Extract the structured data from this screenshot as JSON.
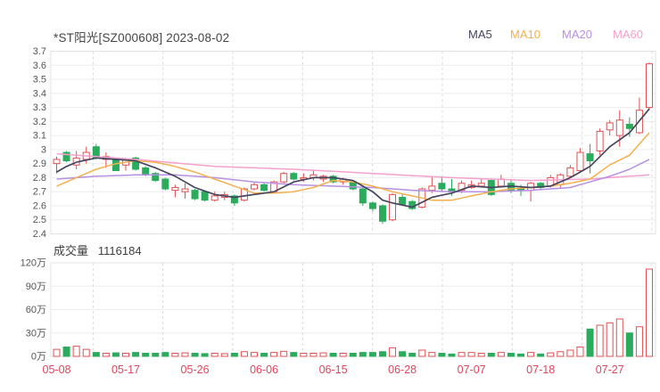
{
  "header": {
    "title": "*ST阳光[SZ000608] 2023-08-02",
    "legend": [
      {
        "label": "MA5",
        "color": "#45455f"
      },
      {
        "label": "MA10",
        "color": "#f3b04e"
      },
      {
        "label": "MA20",
        "color": "#b78fe3"
      },
      {
        "label": "MA60",
        "color": "#f5a0cd"
      }
    ]
  },
  "volume_header": {
    "label": "成交量",
    "value": "1116184"
  },
  "colors": {
    "up": "#e15052",
    "down": "#2bab5c",
    "ma5": "#45455f",
    "ma10": "#f3b04e",
    "ma20": "#b78fe3",
    "ma60": "#f5a0cd",
    "grid": "#ededed",
    "grid_dash": "#d9d9d9",
    "border": "#e3e3e3",
    "axis_text": "#555555",
    "x_axis_text": "#e0455c",
    "title_text": "#454545"
  },
  "chart_data": {
    "type": "candlestick+volume",
    "title": "*ST阳光[SZ000608] 2023-08-02",
    "price_axis": {
      "min": 2.4,
      "max": 3.7,
      "ticks": [
        "3.7",
        "3.6",
        "3.5",
        "3.4",
        "3.3",
        "3.2",
        "3.1",
        "3",
        "2.9",
        "2.8",
        "2.7",
        "2.6",
        "2.5",
        "2.4"
      ]
    },
    "volume_axis": {
      "max_wan": 120,
      "ticks_wan": [
        120,
        90,
        60,
        30,
        0
      ],
      "unit": "万"
    },
    "x_ticks": [
      {
        "i": 0,
        "label": "05-08"
      },
      {
        "i": 7,
        "label": "05-17"
      },
      {
        "i": 14,
        "label": "05-26"
      },
      {
        "i": 21,
        "label": "06-06"
      },
      {
        "i": 28,
        "label": "06-15"
      },
      {
        "i": 35,
        "label": "06-28"
      },
      {
        "i": 42,
        "label": "07-07"
      },
      {
        "i": 49,
        "label": "07-18"
      },
      {
        "i": 56,
        "label": "07-27"
      }
    ],
    "dates": [
      "05-08",
      "05-09",
      "05-10",
      "05-11",
      "05-12",
      "05-15",
      "05-16",
      "05-17",
      "05-18",
      "05-19",
      "05-22",
      "05-23",
      "05-24",
      "05-25",
      "05-26",
      "05-29",
      "05-30",
      "05-31",
      "06-01",
      "06-02",
      "06-05",
      "06-06",
      "06-07",
      "06-08",
      "06-09",
      "06-12",
      "06-13",
      "06-14",
      "06-15",
      "06-16",
      "06-19",
      "06-20",
      "06-21",
      "06-26",
      "06-27",
      "06-28",
      "06-29",
      "06-30",
      "07-03",
      "07-04",
      "07-05",
      "07-06",
      "07-07",
      "07-10",
      "07-11",
      "07-12",
      "07-13",
      "07-14",
      "07-17",
      "07-18",
      "07-19",
      "07-20",
      "07-21",
      "07-24",
      "07-25",
      "07-26",
      "07-27",
      "07-28",
      "07-31",
      "08-01",
      "08-02"
    ],
    "ohlc": [
      [
        2.9,
        2.95,
        2.83,
        2.93
      ],
      [
        2.98,
        2.99,
        2.91,
        2.92
      ],
      [
        2.89,
        2.99,
        2.86,
        2.94
      ],
      [
        2.93,
        3.02,
        2.9,
        2.98
      ],
      [
        3.02,
        3.04,
        2.93,
        2.94
      ],
      [
        2.93,
        2.98,
        2.87,
        2.95
      ],
      [
        2.93,
        2.94,
        2.85,
        2.85
      ],
      [
        2.89,
        2.94,
        2.85,
        2.93
      ],
      [
        2.94,
        2.95,
        2.85,
        2.86
      ],
      [
        2.87,
        2.88,
        2.81,
        2.82
      ],
      [
        2.83,
        2.84,
        2.77,
        2.78
      ],
      [
        2.79,
        2.8,
        2.71,
        2.72
      ],
      [
        2.71,
        2.75,
        2.66,
        2.73
      ],
      [
        2.7,
        2.76,
        2.65,
        2.72
      ],
      [
        2.71,
        2.72,
        2.64,
        2.65
      ],
      [
        2.7,
        2.71,
        2.63,
        2.64
      ],
      [
        2.64,
        2.7,
        2.63,
        2.67
      ],
      [
        2.66,
        2.7,
        2.64,
        2.68
      ],
      [
        2.67,
        2.68,
        2.6,
        2.62
      ],
      [
        2.64,
        2.73,
        2.63,
        2.72
      ],
      [
        2.72,
        2.77,
        2.71,
        2.75
      ],
      [
        2.75,
        2.76,
        2.7,
        2.71
      ],
      [
        2.7,
        2.78,
        2.69,
        2.77
      ],
      [
        2.77,
        2.84,
        2.76,
        2.83
      ],
      [
        2.83,
        2.84,
        2.78,
        2.79
      ],
      [
        2.79,
        2.83,
        2.77,
        2.8
      ],
      [
        2.8,
        2.85,
        2.78,
        2.82
      ],
      [
        2.79,
        2.82,
        2.77,
        2.81
      ],
      [
        2.81,
        2.82,
        2.76,
        2.77
      ],
      [
        2.77,
        2.8,
        2.75,
        2.79
      ],
      [
        2.77,
        2.78,
        2.71,
        2.72
      ],
      [
        2.72,
        2.73,
        2.6,
        2.62
      ],
      [
        2.62,
        2.63,
        2.56,
        2.58
      ],
      [
        2.6,
        2.61,
        2.47,
        2.49
      ],
      [
        2.5,
        2.69,
        2.49,
        2.68
      ],
      [
        2.66,
        2.68,
        2.6,
        2.61
      ],
      [
        2.63,
        2.64,
        2.57,
        2.58
      ],
      [
        2.59,
        2.73,
        2.58,
        2.72
      ],
      [
        2.71,
        2.81,
        2.69,
        2.74
      ],
      [
        2.76,
        2.8,
        2.7,
        2.72
      ],
      [
        2.72,
        2.79,
        2.67,
        2.7
      ],
      [
        2.71,
        2.78,
        2.69,
        2.76
      ],
      [
        2.73,
        2.78,
        2.72,
        2.75
      ],
      [
        2.74,
        2.79,
        2.73,
        2.76
      ],
      [
        2.78,
        2.79,
        2.67,
        2.68
      ],
      [
        2.74,
        2.82,
        2.73,
        2.79
      ],
      [
        2.76,
        2.79,
        2.69,
        2.71
      ],
      [
        2.72,
        2.75,
        2.67,
        2.71
      ],
      [
        2.71,
        2.77,
        2.63,
        2.76
      ],
      [
        2.76,
        2.77,
        2.71,
        2.73
      ],
      [
        2.74,
        2.82,
        2.73,
        2.8
      ],
      [
        2.75,
        2.83,
        2.73,
        2.82
      ],
      [
        2.81,
        2.89,
        2.8,
        2.87
      ],
      [
        2.85,
        3.01,
        2.84,
        2.98
      ],
      [
        2.97,
        3.04,
        2.83,
        2.92
      ],
      [
        2.99,
        3.15,
        2.96,
        3.13
      ],
      [
        3.14,
        3.21,
        3.1,
        3.19
      ],
      [
        3.1,
        3.28,
        3.02,
        3.21
      ],
      [
        3.18,
        3.23,
        3.09,
        3.15
      ],
      [
        3.12,
        3.37,
        3.11,
        3.28
      ],
      [
        3.3,
        3.62,
        3.28,
        3.61
      ]
    ],
    "volumes_wan": [
      9,
      12,
      13,
      9,
      5,
      4,
      4.5,
      4,
      5,
      4,
      4,
      5,
      4,
      4.5,
      4,
      3.5,
      4,
      3.5,
      4,
      6,
      5,
      4,
      5,
      6.5,
      5,
      4,
      4,
      4.5,
      4,
      4,
      4,
      5,
      5,
      6,
      11,
      6,
      4,
      8,
      5,
      4,
      3,
      5,
      5,
      4,
      4,
      5,
      4,
      3,
      5,
      3,
      4.5,
      6,
      8,
      12,
      35,
      40,
      43,
      48,
      30,
      38,
      112
    ],
    "ma_series": [
      {
        "name": "MA5",
        "color": "#45455f",
        "width": 1.7,
        "points": [
          [
            0,
            2.84
          ],
          [
            1,
            2.88
          ],
          [
            2,
            2.91
          ],
          [
            4,
            2.94
          ],
          [
            6,
            2.93
          ],
          [
            8,
            2.92
          ],
          [
            10,
            2.87
          ],
          [
            12,
            2.81
          ],
          [
            14,
            2.73
          ],
          [
            16,
            2.68
          ],
          [
            18,
            2.66
          ],
          [
            20,
            2.68
          ],
          [
            22,
            2.7
          ],
          [
            24,
            2.77
          ],
          [
            26,
            2.8
          ],
          [
            28,
            2.8
          ],
          [
            30,
            2.78
          ],
          [
            32,
            2.7
          ],
          [
            33,
            2.64
          ],
          [
            34,
            2.62
          ],
          [
            36,
            2.59
          ],
          [
            38,
            2.66
          ],
          [
            40,
            2.69
          ],
          [
            42,
            2.74
          ],
          [
            44,
            2.73
          ],
          [
            46,
            2.74
          ],
          [
            48,
            2.73
          ],
          [
            50,
            2.74
          ],
          [
            52,
            2.8
          ],
          [
            54,
            2.88
          ],
          [
            56,
            3.02
          ],
          [
            58,
            3.12
          ],
          [
            60,
            3.29
          ]
        ]
      },
      {
        "name": "MA10",
        "color": "#f3b04e",
        "width": 1.5,
        "points": [
          [
            0,
            2.74
          ],
          [
            2,
            2.8
          ],
          [
            4,
            2.86
          ],
          [
            6,
            2.9
          ],
          [
            8,
            2.92
          ],
          [
            10,
            2.91
          ],
          [
            12,
            2.88
          ],
          [
            14,
            2.84
          ],
          [
            16,
            2.79
          ],
          [
            18,
            2.74
          ],
          [
            20,
            2.69
          ],
          [
            22,
            2.69
          ],
          [
            24,
            2.7
          ],
          [
            26,
            2.73
          ],
          [
            28,
            2.78
          ],
          [
            30,
            2.77
          ],
          [
            32,
            2.74
          ],
          [
            34,
            2.7
          ],
          [
            36,
            2.67
          ],
          [
            38,
            2.64
          ],
          [
            40,
            2.64
          ],
          [
            42,
            2.67
          ],
          [
            44,
            2.7
          ],
          [
            46,
            2.72
          ],
          [
            48,
            2.73
          ],
          [
            50,
            2.74
          ],
          [
            52,
            2.76
          ],
          [
            54,
            2.79
          ],
          [
            56,
            2.89
          ],
          [
            58,
            2.96
          ],
          [
            60,
            3.12
          ]
        ]
      },
      {
        "name": "MA20",
        "color": "#b78fe3",
        "width": 1.5,
        "points": [
          [
            0,
            2.79
          ],
          [
            4,
            2.81
          ],
          [
            8,
            2.82
          ],
          [
            12,
            2.82
          ],
          [
            16,
            2.8
          ],
          [
            20,
            2.77
          ],
          [
            24,
            2.75
          ],
          [
            28,
            2.74
          ],
          [
            32,
            2.73
          ],
          [
            36,
            2.71
          ],
          [
            40,
            2.7
          ],
          [
            44,
            2.7
          ],
          [
            48,
            2.71
          ],
          [
            52,
            2.73
          ],
          [
            56,
            2.81
          ],
          [
            58,
            2.86
          ],
          [
            60,
            2.93
          ]
        ]
      },
      {
        "name": "MA60",
        "color": "#f5a0cd",
        "width": 1.5,
        "points": [
          [
            0,
            2.97
          ],
          [
            8,
            2.93
          ],
          [
            16,
            2.88
          ],
          [
            24,
            2.86
          ],
          [
            32,
            2.83
          ],
          [
            40,
            2.8
          ],
          [
            48,
            2.78
          ],
          [
            54,
            2.79
          ],
          [
            60,
            2.82
          ]
        ]
      }
    ]
  }
}
